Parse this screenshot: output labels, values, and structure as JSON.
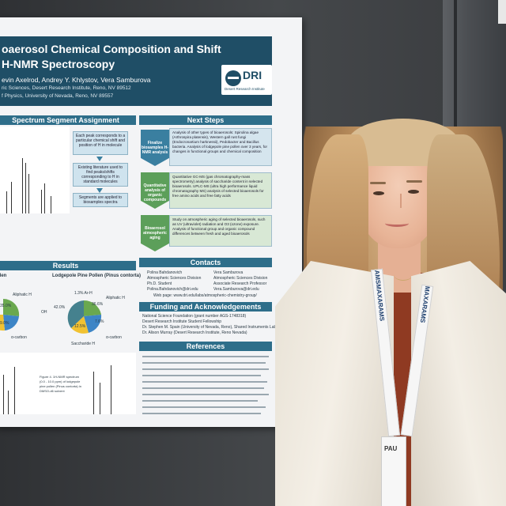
{
  "poster": {
    "title_line1": "oaerosol Chemical Composition and Shift",
    "title_line2": "H-NMR Spectroscopy",
    "authors": "evin Axelrod, Andrey Y. Khlystov, Vera Samburova",
    "affil1": "ric Sciences, Desert Research Institute, Reno, NV 89512",
    "affil2": "f Physics, University of Nevada, Reno, NV 89557",
    "logo_text": "DRI",
    "logo_sub": "Desert Research Institute",
    "sections": {
      "spectrum": "Spectrum Segment Assignment",
      "next_steps": "Next Steps",
      "results": "Results",
      "contacts": "Contacts",
      "funding": "Funding and Acknowledgements",
      "references": "References"
    },
    "spectrum_boxes": [
      "Each peak corresponds to a particular chemical shift and position of H in molecule",
      "Existing literature used to find peaks/shifts corresponding to H in standard molecules",
      "Segments are applied to biosamples spectra"
    ],
    "steps": [
      {
        "label": "Finalize biosamples H-NMR analysis",
        "text": "Analysis of other types of bioaerosols: Spirulina algae (Arthrospira platensis), Western gall rust fungi (Endocronartium harknessii), Pedobacter and Bacillus bacteria. Analysis of lodgepole pine pollen over 3 years, for changes in functional groups and chemical composition"
      },
      {
        "label": "Quantitative analysis of organic compounds",
        "text": "Quantitative GC-MS (gas chromatography-mass spectrometry) analysis of saccharide content in selected bioaerosols. UPLC-MS (ultra high performance liquid chromatography MS) analysis of selected bioaerosols for free amino acids and free fatty acids"
      },
      {
        "label": "Bioaerosol atmospheric aging",
        "text": "Study on atmospheric aging of selected bioaerosols, such as UV (ultraviolet) radiation and O3 (ozone) exposure. Analysis of functional group and organic compound differences between fresh and aged bioaerosols"
      }
    ],
    "contacts": {
      "c1_name": "Polina Bahdanovich",
      "c1_role": "Atmospheric Sciences Division",
      "c1_title": "Ph.D. Student",
      "c1_email": "Polina.Bahdanovich@dri.edu",
      "c2_name": "Vera Samburova",
      "c2_role": "Atmospheric Sciences Division",
      "c2_title": "Associate Research Professor",
      "c2_email": "Vera.Samburova@dri.edu",
      "site": "Web page: www.dri.edu/labs/atmospheric-chemistry-group/"
    },
    "funding": [
      "National Science Foundation (grant number AGS-1748318)",
      "Desert Research Institute Student Fellowship",
      "Dr. Stephen M. Spain (University of Nevada, Reno), Shared Instruments Lab (SIL)",
      "Dr. Alison Murray (Desert Research Institute, Reno Nevada)"
    ],
    "results_chart_titles": [
      "llen",
      "Lodgepole Pine Pollen (Pinus contorta)"
    ],
    "pie_left_labels": [
      "35.0%",
      "9.0%",
      "Aliphatic H",
      "α-carbon"
    ],
    "pie_right_labels": [
      "1.3% Ar-H",
      "36.6%",
      "42.0%",
      "12.5%",
      "7.6%",
      "Aliphatic H",
      "α-carbon",
      "Saccharide H",
      "OH"
    ],
    "figure_caption": "Figure 4. 1H-NMR spectrum (0.0 - 10.0 ppm) of lodgepole pine pollen (Pinus contorta) in DMSO-d6 solvent"
  },
  "lanyard_text": [
    "AMS",
    "MAXAR",
    "AMS",
    "MAXAR",
    "AMS"
  ],
  "badge_text": "PAU"
}
